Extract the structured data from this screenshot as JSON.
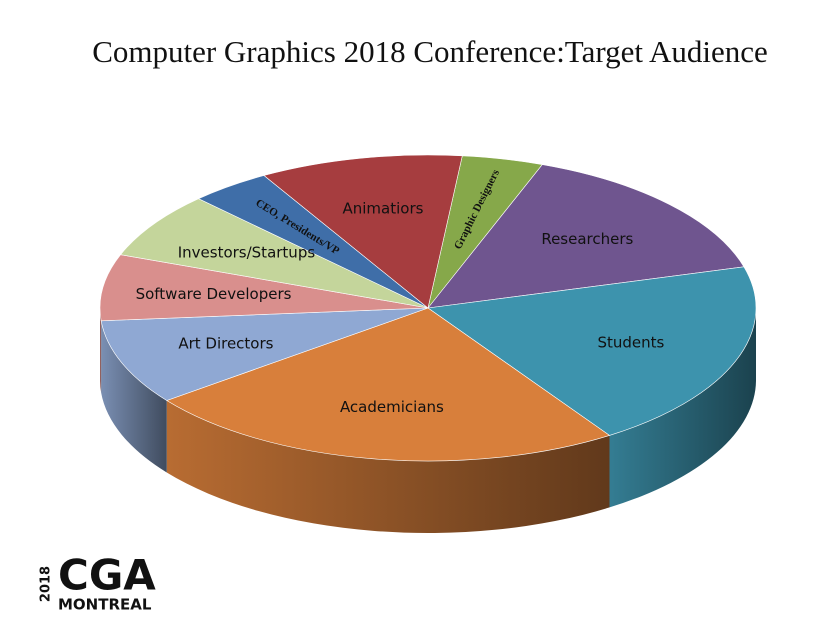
{
  "chart_data": {
    "type": "pie",
    "title": "Computer Graphics 2018 Conference:Target Audience",
    "categories": [
      "Graphic Designers",
      "Researchers",
      "Students",
      "Academicians",
      "Art Directors",
      "Software Developers",
      "Investors/Startups",
      "CEO, Presidents/VP",
      "Animatiors"
    ],
    "values": [
      4,
      15,
      20,
      24,
      9,
      7,
      7,
      4,
      10
    ],
    "colors": [
      "#86a84a",
      "#6f558f",
      "#3d93ad",
      "#d87f3b",
      "#8fa8d3",
      "#d98f8d",
      "#c4d59b",
      "#3f6ea8",
      "#a63d3f"
    ]
  },
  "logo": {
    "year": "2018",
    "name": "CGA",
    "city": "MONTREAL"
  }
}
